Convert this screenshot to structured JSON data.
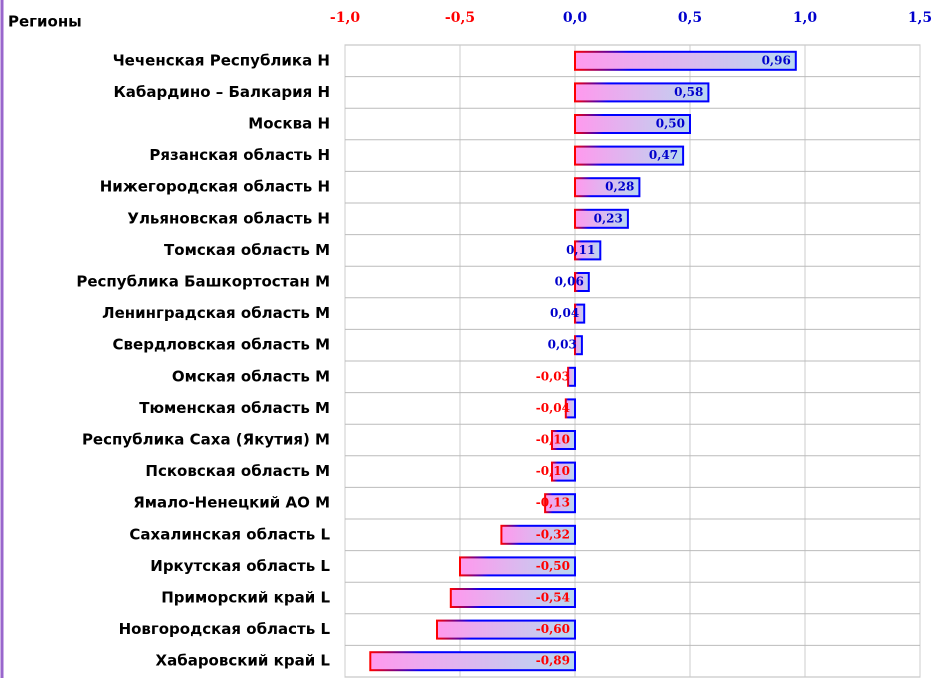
{
  "chart_data": {
    "type": "bar",
    "orientation": "horizontal",
    "y_label": "Регионы",
    "categories": [
      "Чеченская Республика H",
      "Кабардино – Балкария H",
      "Москва H",
      "Рязанская область H",
      "Нижегородская область H",
      "Ульяновская область H",
      "Томская область M",
      "Республика Башкортостан M",
      "Ленинградская область M",
      "Свердловская область M",
      "Омская область M",
      "Тюменская область M",
      "Республика Саха (Якутия) M",
      "Псковская область M",
      "Ямало-Ненецкий АО M",
      "Сахалинская область L",
      "Иркутская область L",
      "Приморский край L",
      "Новгородская область L",
      "Хабаровский край L"
    ],
    "values": [
      0.96,
      0.58,
      0.5,
      0.47,
      0.28,
      0.23,
      0.11,
      0.06,
      0.04,
      0.03,
      -0.03,
      -0.04,
      -0.1,
      -0.1,
      -0.13,
      -0.32,
      -0.5,
      -0.54,
      -0.6,
      -0.89
    ],
    "value_labels": [
      "0,96",
      "0,58",
      "0,50",
      "0,47",
      "0,28",
      "0,23",
      "0,11",
      "0,06",
      "0,04",
      "0,03",
      "-0,03",
      "-0,04",
      "-0,10",
      "-0,10",
      "-0,13",
      "-0,32",
      "-0,50",
      "-0,54",
      "-0,60",
      "-0,89"
    ],
    "xlim": [
      -1,
      1.5
    ],
    "xticks": [
      {
        "value": -1,
        "label": "-1,0"
      },
      {
        "value": -0.5,
        "label": "-0,5"
      },
      {
        "value": 0,
        "label": "0,0"
      },
      {
        "value": 0.5,
        "label": "0,5"
      },
      {
        "value": 1,
        "label": "1,0"
      },
      {
        "value": 1.5,
        "label": "1,5"
      }
    ],
    "positive_color": "#0000cc",
    "negative_color": "#ff0000",
    "gradient": [
      "#ff99ee",
      "#b8d8f0"
    ],
    "grid": true
  }
}
